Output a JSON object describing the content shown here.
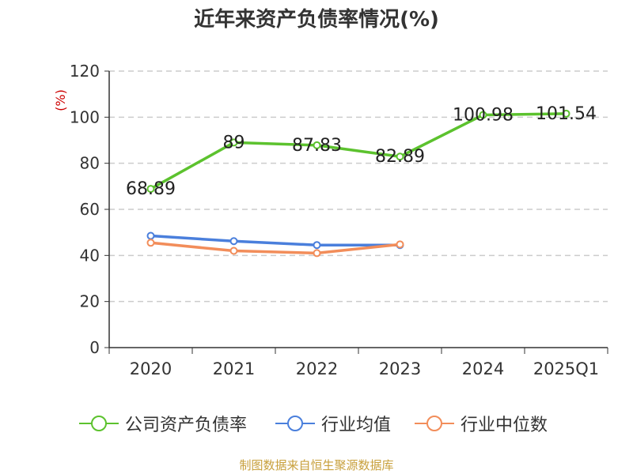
{
  "chart_data": {
    "type": "line",
    "title": "近年来资产负债率情况(%)",
    "ylabel": "(%)",
    "xlabel": "",
    "categories": [
      "2020",
      "2021",
      "2022",
      "2023",
      "2024",
      "2025Q1"
    ],
    "yticks": [
      "0",
      "20",
      "40",
      "60",
      "80",
      "100",
      "120"
    ],
    "ylim": [
      0,
      120
    ],
    "grid": true,
    "legend_position": "bottom",
    "series": [
      {
        "name": "公司资产负债率",
        "color": "#5cc22e",
        "values": [
          68.89,
          89,
          87.83,
          82.89,
          100.98,
          101.54
        ],
        "labels": [
          "68.89",
          "89",
          "87.83",
          "82.89",
          "100.98",
          "101.54"
        ]
      },
      {
        "name": "行业均值",
        "color": "#4a7fdc",
        "values": [
          48.5,
          46.2,
          44.5,
          44.5,
          null,
          null
        ]
      },
      {
        "name": "行业中位数",
        "color": "#f28d5a",
        "values": [
          45.5,
          42.0,
          41.0,
          44.8,
          null,
          null
        ]
      }
    ],
    "source": "制图数据来自恒生聚源数据库"
  }
}
